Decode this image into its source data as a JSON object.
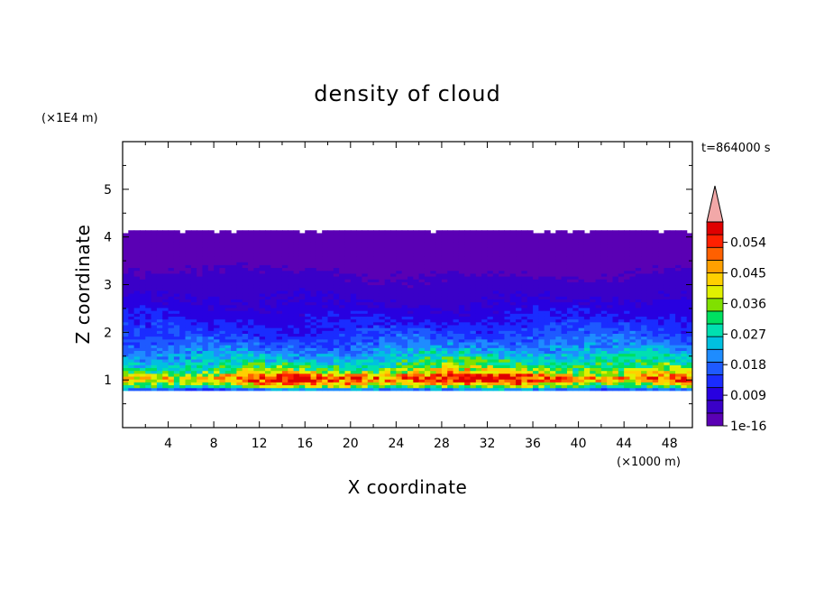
{
  "chart_data": {
    "type": "heatmap",
    "title": "density of cloud",
    "xlabel": "X coordinate",
    "ylabel": "Z coordinate",
    "x_unit_label": "(×1000 m)",
    "y_unit_label": "(×1E4 m)",
    "time_label": "t=864000 s",
    "xlim": [
      0,
      50
    ],
    "ylim": [
      0,
      6
    ],
    "x_ticks": [
      "4",
      "8",
      "12",
      "16",
      "20",
      "24",
      "28",
      "32",
      "36",
      "40",
      "44",
      "48"
    ],
    "x_tick_values": [
      4,
      8,
      12,
      16,
      20,
      24,
      28,
      32,
      36,
      40,
      44,
      48
    ],
    "y_ticks": [
      "1",
      "2",
      "3",
      "4",
      "5"
    ],
    "y_tick_values": [
      1,
      2,
      3,
      4,
      5
    ],
    "cloud_base": 0.78,
    "cloud_top": 4.1,
    "profile": [
      {
        "z": 0.78,
        "v": 0.012
      },
      {
        "z": 0.85,
        "v": 0.03
      },
      {
        "z": 0.95,
        "v": 0.045
      },
      {
        "z": 1.05,
        "v": 0.052
      },
      {
        "z": 1.15,
        "v": 0.04
      },
      {
        "z": 1.25,
        "v": 0.033
      },
      {
        "z": 1.4,
        "v": 0.027
      },
      {
        "z": 1.55,
        "v": 0.023
      },
      {
        "z": 1.75,
        "v": 0.018
      },
      {
        "z": 2.0,
        "v": 0.014
      },
      {
        "z": 2.3,
        "v": 0.011
      },
      {
        "z": 2.6,
        "v": 0.008
      },
      {
        "z": 2.9,
        "v": 0.006
      },
      {
        "z": 3.2,
        "v": 0.004
      },
      {
        "z": 3.6,
        "v": 0.002
      },
      {
        "z": 4.1,
        "v": 0.0005
      }
    ],
    "colorbar": {
      "labels": [
        "0.054",
        "0.045",
        "0.036",
        "0.027",
        "0.018",
        "0.009",
        "1e-16"
      ],
      "label_values": [
        0.054,
        0.045,
        0.036,
        0.027,
        0.018,
        0.009,
        0
      ],
      "max": 0.06,
      "colors": [
        "#5a00b4",
        "#3a00c8",
        "#2800e0",
        "#1a2cff",
        "#1e5aff",
        "#1e8cff",
        "#00c0e0",
        "#00e0b0",
        "#00e060",
        "#80e000",
        "#e0f000",
        "#ffd000",
        "#ffa000",
        "#ff6000",
        "#ff2000",
        "#e00000"
      ],
      "extend_color": "#f2a8a8"
    }
  }
}
